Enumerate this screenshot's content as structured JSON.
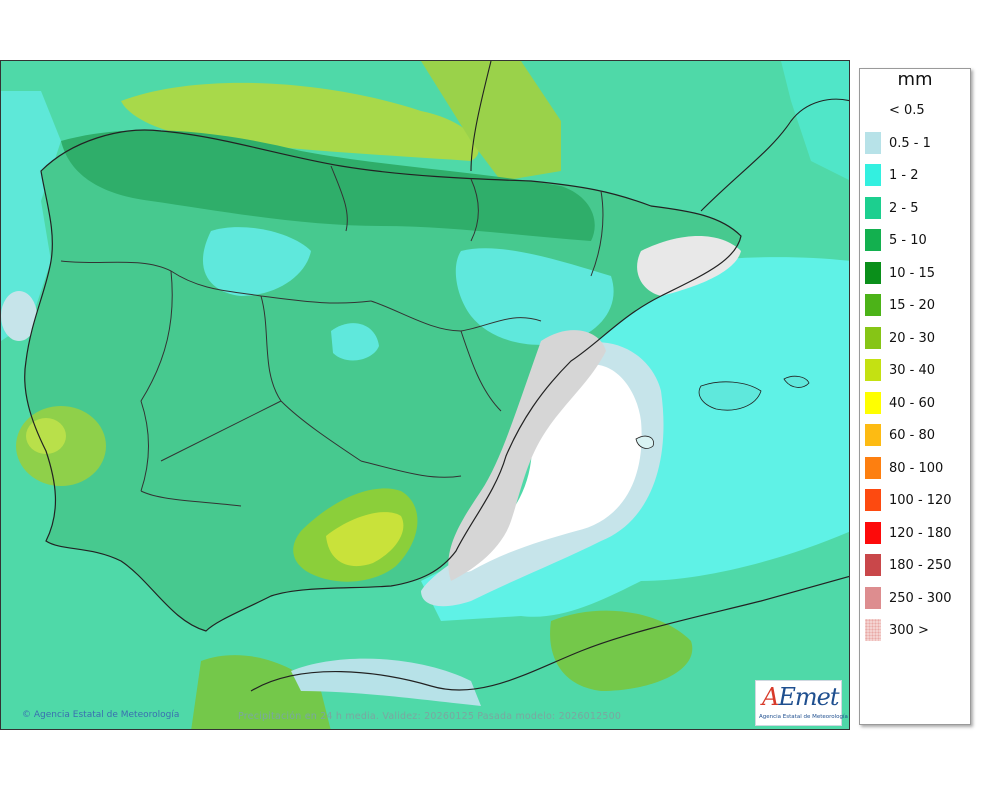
{
  "map": {
    "copyright": "Agencia Estatal de Meteorología",
    "caption": "Precipitación en 24 h media. Validez: 20260125 Pasada modelo: 2026012500"
  },
  "logo": {
    "mark_a": "A",
    "mark_rest": "Emet",
    "subtitle": "Agencia Estatal de Meteorología"
  },
  "legend": {
    "unit": "mm",
    "items": [
      {
        "label": "< 0.5",
        "color": "#ffffff"
      },
      {
        "label": "0.5 - 1",
        "color": "#b7e2e8"
      },
      {
        "label": "1 - 2",
        "color": "#33f0e0"
      },
      {
        "label": "2 - 5",
        "color": "#1ccf8f"
      },
      {
        "label": "5 - 10",
        "color": "#13b04f"
      },
      {
        "label": "10 - 15",
        "color": "#0a8f1a"
      },
      {
        "label": "15 - 20",
        "color": "#4cb318"
      },
      {
        "label": "20 - 30",
        "color": "#86c516"
      },
      {
        "label": "30 - 40",
        "color": "#c4e112"
      },
      {
        "label": "40 - 60",
        "color": "#ffff00"
      },
      {
        "label": "60 - 80",
        "color": "#fdbb13"
      },
      {
        "label": "80 - 100",
        "color": "#fd7f10"
      },
      {
        "label": "100 - 120",
        "color": "#fd4a10"
      },
      {
        "label": "120 - 180",
        "color": "#fd0a0a"
      },
      {
        "label": "180 - 250",
        "color": "#c9474a"
      },
      {
        "label": "250 - 300",
        "color": "#dd8d8f"
      },
      {
        "label": "300 >",
        "color": "#f4d2d0"
      }
    ]
  }
}
